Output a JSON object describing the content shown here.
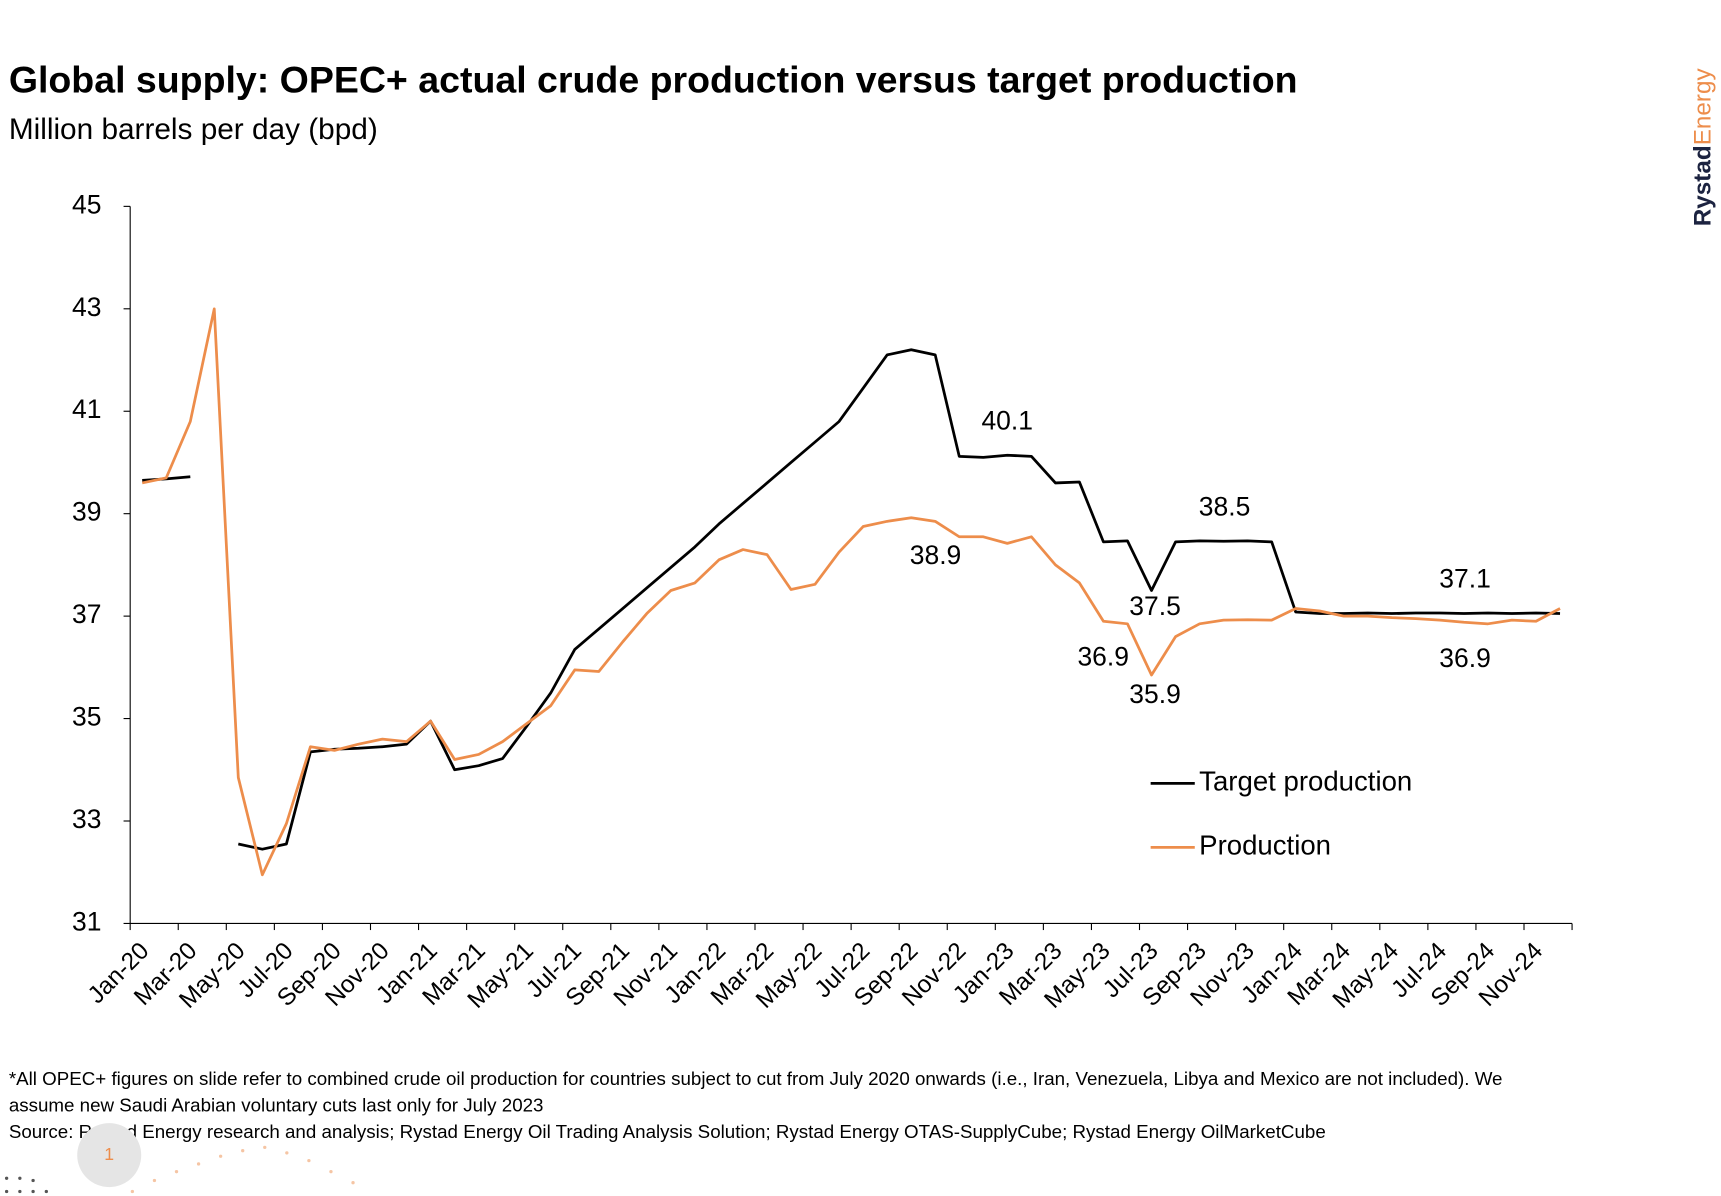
{
  "chart_data": {
    "type": "line",
    "title": "Global supply: OPEC+ actual crude production versus target production",
    "subtitle": "Million barrels per day (bpd)",
    "categories": [
      "Jan-20",
      null,
      "Mar-20",
      null,
      "May-20",
      null,
      "Jul-20",
      null,
      "Sep-20",
      null,
      "Nov-20",
      null,
      "Jan-21",
      null,
      "Mar-21",
      null,
      "May-21",
      null,
      "Jul-21",
      null,
      "Sep-21",
      null,
      "Nov-21",
      null,
      "Jan-22",
      null,
      "Mar-22",
      null,
      "May-22",
      null,
      "Jul-22",
      null,
      "Sep-22",
      null,
      "Nov-22",
      null,
      "Jan-23",
      null,
      "Mar-23",
      null,
      "May-23",
      null,
      "Jul-23",
      null,
      "Sep-23",
      null,
      "Nov-23",
      null,
      "Jan-24",
      null,
      "Mar-24",
      null,
      "May-24",
      null,
      "Jul-24",
      null,
      "Sep-24",
      null,
      "Nov-24",
      null
    ],
    "series": [
      {
        "name": "Target production",
        "color": "#000000",
        "values": [
          39.65,
          39.68,
          39.72,
          null,
          32.55,
          32.45,
          32.55,
          34.35,
          34.4,
          34.42,
          34.45,
          34.5,
          34.95,
          34.0,
          34.08,
          34.22,
          34.85,
          35.5,
          36.35,
          36.75,
          37.15,
          37.55,
          37.95,
          38.35,
          38.8,
          39.2,
          39.6,
          40.0,
          40.4,
          40.8,
          41.45,
          42.1,
          42.2,
          42.1,
          40.12,
          40.1,
          40.14,
          40.12,
          39.6,
          39.62,
          38.45,
          38.47,
          37.5,
          38.45,
          38.47,
          38.46,
          38.47,
          38.45,
          37.08,
          37.05,
          37.05,
          37.06,
          37.05,
          37.06,
          37.06,
          37.05,
          37.06,
          37.05,
          37.06,
          37.05
        ]
      },
      {
        "name": "Production",
        "color": "#ed8d4b",
        "values": [
          39.6,
          39.7,
          40.8,
          43.0,
          33.85,
          31.95,
          32.95,
          34.45,
          34.38,
          34.5,
          34.6,
          34.55,
          34.95,
          34.2,
          34.3,
          34.55,
          34.9,
          35.25,
          35.95,
          35.92,
          36.5,
          37.05,
          37.5,
          37.65,
          38.1,
          38.3,
          38.2,
          37.52,
          37.62,
          38.25,
          38.75,
          38.85,
          38.92,
          38.85,
          38.55,
          38.55,
          38.42,
          38.55,
          38.0,
          37.65,
          36.9,
          36.85,
          35.85,
          36.6,
          36.85,
          36.92,
          36.93,
          36.92,
          37.15,
          37.1,
          37.0,
          37.0,
          36.97,
          36.95,
          36.92,
          36.88,
          36.85,
          36.92,
          36.9,
          37.15
        ]
      }
    ],
    "annotations": [
      "40.1",
      "38.9",
      "38.5",
      "37.5",
      "36.9",
      "35.9",
      "37.1",
      "36.9"
    ],
    "ylim": [
      31,
      45
    ],
    "yticks": [
      31,
      33,
      35,
      37,
      39,
      41,
      43,
      45
    ],
    "grid": false,
    "legend": "right"
  },
  "footnote": "*All OPEC+ figures on slide refer to combined crude oil production for countries subject to cut from July 2020 onwards (i.e., Iran, Venezuela, Libya and Mexico are not included). We",
  "footnote_cont": "assume new Saudi Arabian voluntary cuts last only for July 2023",
  "source": "Source: Rystad Energy research and analysis; Rystad Energy Oil Trading Analysis Solution; Rystad Energy OTAS-SupplyCube; Rystad Energy OilMarketCube",
  "logo": [
    "Rystad",
    "Energy"
  ],
  "page_number": "1"
}
